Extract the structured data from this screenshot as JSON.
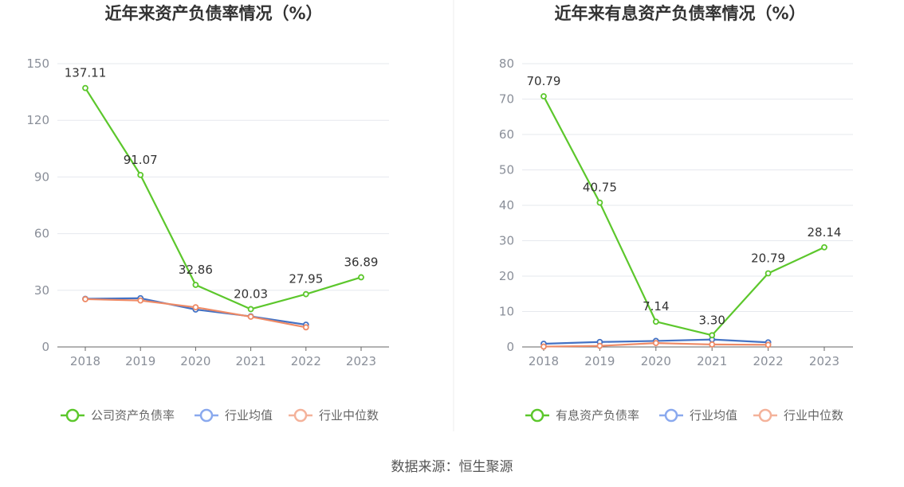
{
  "chart_data": [
    {
      "type": "line",
      "title": "近年来资产负债率情况（%）",
      "categories": [
        "2018",
        "2019",
        "2020",
        "2021",
        "2022",
        "2023"
      ],
      "ylim": [
        0,
        150
      ],
      "yticks": [
        0,
        30,
        60,
        90,
        120,
        150
      ],
      "grid": true,
      "legend_position": "bottom",
      "series": [
        {
          "name": "公司资产负债率",
          "color": "#5cc72c",
          "values": [
            137.11,
            91.07,
            32.86,
            20.03,
            27.95,
            36.89
          ],
          "labels": [
            "137.11",
            "91.07",
            "32.86",
            "20.03",
            "27.95",
            "36.89"
          ]
        },
        {
          "name": "行业均值",
          "color": "#4472c4",
          "legend_color": "#8aa9ee",
          "values": [
            25.5,
            25.8,
            19.8,
            16.2,
            11.8,
            null
          ]
        },
        {
          "name": "行业中位数",
          "color": "#ee8a66",
          "legend_color": "#f4b29a",
          "values": [
            25.3,
            24.6,
            21.0,
            16.0,
            10.4,
            null
          ]
        }
      ]
    },
    {
      "type": "line",
      "title": "近年来有息资产负债率情况（%）",
      "categories": [
        "2018",
        "2019",
        "2020",
        "2021",
        "2022",
        "2023"
      ],
      "ylim": [
        0,
        80
      ],
      "yticks": [
        0,
        10,
        20,
        30,
        40,
        50,
        60,
        70,
        80
      ],
      "grid": true,
      "legend_position": "bottom",
      "series": [
        {
          "name": "有息资产负债率",
          "color": "#5cc72c",
          "values": [
            70.79,
            40.75,
            7.14,
            3.3,
            20.79,
            28.14
          ],
          "labels": [
            "70.79",
            "40.75",
            "7.14",
            "3.30",
            "20.79",
            "28.14"
          ]
        },
        {
          "name": "行业均值",
          "color": "#4472c4",
          "legend_color": "#8aa9ee",
          "values": [
            0.9,
            1.4,
            1.7,
            2.1,
            1.3,
            null
          ]
        },
        {
          "name": "行业中位数",
          "color": "#ee8a66",
          "legend_color": "#f4b29a",
          "values": [
            0.1,
            0.3,
            1.1,
            0.7,
            0.6,
            null
          ]
        }
      ]
    }
  ],
  "source": "数据来源：恒生聚源"
}
